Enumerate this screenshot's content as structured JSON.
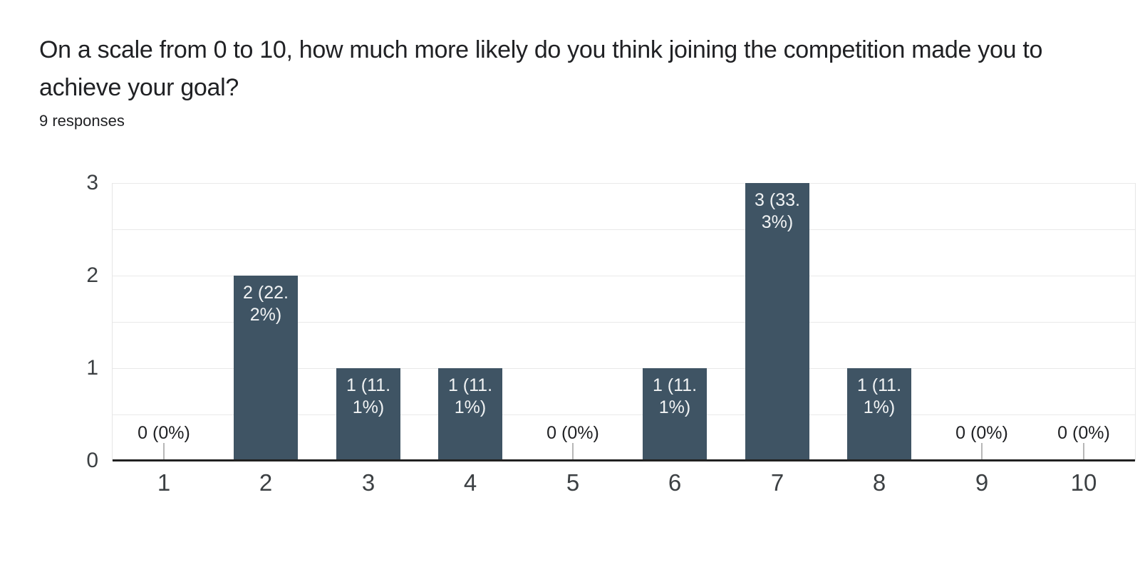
{
  "header": {
    "title": "On a scale from 0 to 10, how much more likely do you think joining the competition made you to achieve your goal?",
    "responses_count": "9 responses"
  },
  "colors": {
    "bar": "#3f5464",
    "bar_label_text": "#f1f3f4",
    "zero_label_text": "#202124",
    "axis_line": "#212121",
    "gridline": "#e9e9e9",
    "plot_border": "#e6e6e6",
    "zero_tick": "#b7b7b7",
    "tick_label": "#3c4043",
    "title_text": "#202124"
  },
  "chart_data": {
    "type": "bar",
    "title": "On a scale from 0 to 10, how much more likely do you think joining the competition made you to achieve your goal?",
    "subtitle": "9 responses",
    "categories": [
      "1",
      "2",
      "3",
      "4",
      "5",
      "6",
      "7",
      "8",
      "9",
      "10"
    ],
    "values": [
      0,
      2,
      1,
      1,
      0,
      1,
      3,
      1,
      0,
      0
    ],
    "labels": [
      "0 (0%)",
      "2 (22.2%)",
      "1 (11.1%)",
      "1 (11.1%)",
      "0 (0%)",
      "1 (11.1%)",
      "3 (33.3%)",
      "1 (11.1%)",
      "0 (0%)",
      "0 (0%)"
    ],
    "label_lines": [
      [
        "0 (0%)"
      ],
      [
        "2 (22.",
        "2%)"
      ],
      [
        "1 (11.",
        "1%)"
      ],
      [
        "1 (11.",
        "1%)"
      ],
      [
        "0 (0%)"
      ],
      [
        "1 (11.",
        "1%)"
      ],
      [
        "3 (33.",
        "3%)"
      ],
      [
        "1 (11.",
        "1%)"
      ],
      [
        "0 (0%)"
      ],
      [
        "0 (0%)"
      ]
    ],
    "y_ticks": [
      0,
      1,
      2,
      3
    ],
    "ylim": [
      0,
      3
    ],
    "grid_step": 0.5,
    "xlabel": "",
    "ylabel": "",
    "legend": "none",
    "grid": "horizontal"
  }
}
